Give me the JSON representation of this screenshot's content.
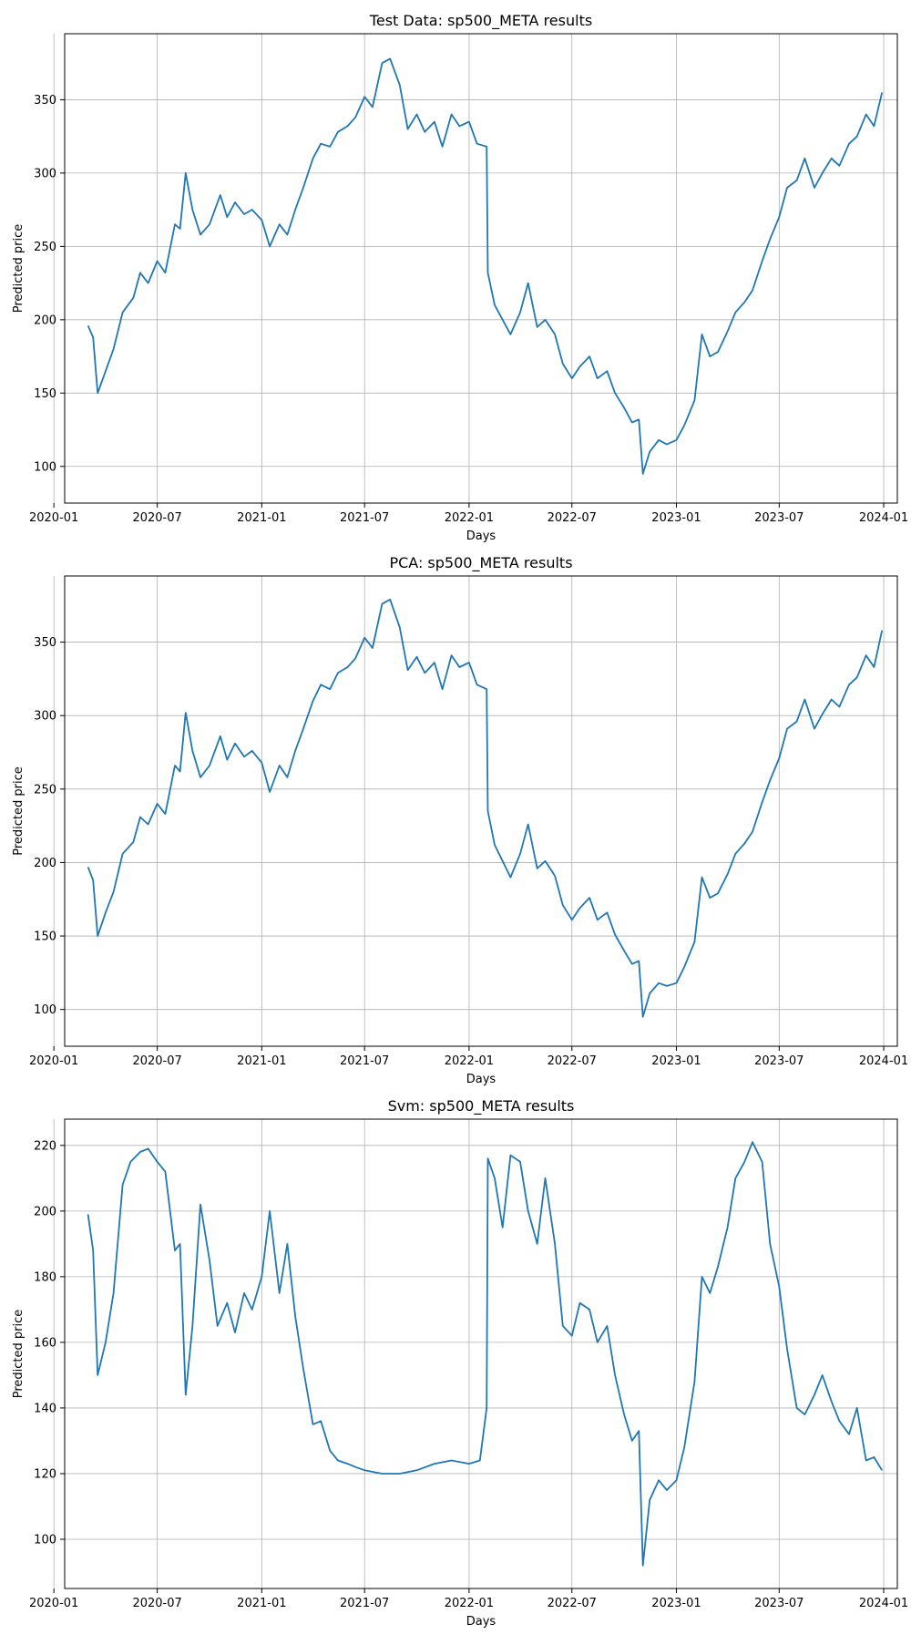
{
  "chart_data": [
    {
      "type": "line",
      "title": "Test Data: sp500_META results",
      "xlabel": "Days",
      "ylabel": "Predicted price",
      "x_ticks": [
        "2020-01",
        "2020-07",
        "2021-01",
        "2021-07",
        "2022-01",
        "2022-07",
        "2023-01",
        "2023-07",
        "2024-01"
      ],
      "y_ticks": [
        100,
        150,
        200,
        250,
        300,
        350
      ],
      "xlim": [
        "2020-01-20",
        "2024-01-25"
      ],
      "ylim": [
        75,
        395
      ],
      "grid": true,
      "color": "#1f77b4",
      "series": [
        {
          "x": [
            "2020-03-01",
            "2020-03-10",
            "2020-03-18",
            "2020-04-01",
            "2020-04-15",
            "2020-05-01",
            "2020-05-20",
            "2020-06-01",
            "2020-06-15",
            "2020-07-01",
            "2020-07-15",
            "2020-08-01",
            "2020-08-10",
            "2020-08-20",
            "2020-09-01",
            "2020-09-15",
            "2020-10-01",
            "2020-10-20",
            "2020-11-01",
            "2020-11-15",
            "2020-12-01",
            "2020-12-15",
            "2021-01-01",
            "2021-01-15",
            "2021-02-01",
            "2021-02-15",
            "2021-03-01",
            "2021-03-15",
            "2021-04-01",
            "2021-04-15",
            "2021-05-01",
            "2021-05-15",
            "2021-06-01",
            "2021-06-15",
            "2021-07-01",
            "2021-07-15",
            "2021-08-01",
            "2021-08-15",
            "2021-09-01",
            "2021-09-15",
            "2021-10-01",
            "2021-10-15",
            "2021-11-01",
            "2021-11-15",
            "2021-12-01",
            "2021-12-15",
            "2022-01-01",
            "2022-01-15",
            "2022-02-01",
            "2022-02-03",
            "2022-02-15",
            "2022-03-01",
            "2022-03-15",
            "2022-04-01",
            "2022-04-15",
            "2022-05-01",
            "2022-05-15",
            "2022-06-01",
            "2022-06-15",
            "2022-07-01",
            "2022-07-15",
            "2022-08-01",
            "2022-08-15",
            "2022-09-01",
            "2022-09-15",
            "2022-10-01",
            "2022-10-15",
            "2022-10-27",
            "2022-11-03",
            "2022-11-15",
            "2022-12-01",
            "2022-12-15",
            "2023-01-01",
            "2023-01-15",
            "2023-02-02",
            "2023-02-15",
            "2023-03-01",
            "2023-03-15",
            "2023-04-01",
            "2023-04-15",
            "2023-05-01",
            "2023-05-15",
            "2023-06-01",
            "2023-06-15",
            "2023-07-01",
            "2023-07-15",
            "2023-08-01",
            "2023-08-15",
            "2023-09-01",
            "2023-09-15",
            "2023-10-01",
            "2023-10-15",
            "2023-11-01",
            "2023-11-15",
            "2023-12-01",
            "2023-12-15",
            "2023-12-29"
          ],
          "values": [
            196,
            188,
            150,
            165,
            180,
            205,
            215,
            232,
            225,
            240,
            232,
            265,
            262,
            300,
            275,
            258,
            265,
            285,
            270,
            280,
            272,
            275,
            268,
            250,
            265,
            258,
            275,
            290,
            310,
            320,
            318,
            328,
            332,
            338,
            352,
            345,
            375,
            378,
            360,
            330,
            340,
            328,
            335,
            318,
            340,
            332,
            335,
            320,
            318,
            232,
            210,
            200,
            190,
            205,
            225,
            195,
            200,
            190,
            170,
            160,
            168,
            175,
            160,
            165,
            150,
            140,
            130,
            132,
            95,
            110,
            118,
            115,
            118,
            128,
            145,
            190,
            175,
            178,
            192,
            205,
            212,
            220,
            240,
            255,
            270,
            290,
            295,
            310,
            290,
            300,
            310,
            305,
            320,
            325,
            340,
            332,
            355
          ]
        }
      ]
    },
    {
      "type": "line",
      "title": "PCA: sp500_META results",
      "xlabel": "Days",
      "ylabel": "Predicted price",
      "x_ticks": [
        "2020-01",
        "2020-07",
        "2021-01",
        "2021-07",
        "2022-01",
        "2022-07",
        "2023-01",
        "2023-07",
        "2024-01"
      ],
      "y_ticks": [
        100,
        150,
        200,
        250,
        300,
        350
      ],
      "xlim": [
        "2020-01-20",
        "2024-01-25"
      ],
      "ylim": [
        75,
        395
      ],
      "grid": true,
      "color": "#1f77b4",
      "series": [
        {
          "x": [
            "2020-03-01",
            "2020-03-10",
            "2020-03-18",
            "2020-04-01",
            "2020-04-15",
            "2020-05-01",
            "2020-05-20",
            "2020-06-01",
            "2020-06-15",
            "2020-07-01",
            "2020-07-15",
            "2020-08-01",
            "2020-08-10",
            "2020-08-20",
            "2020-09-01",
            "2020-09-15",
            "2020-10-01",
            "2020-10-20",
            "2020-11-01",
            "2020-11-15",
            "2020-12-01",
            "2020-12-15",
            "2021-01-01",
            "2021-01-15",
            "2021-02-01",
            "2021-02-15",
            "2021-03-01",
            "2021-03-15",
            "2021-04-01",
            "2021-04-15",
            "2021-05-01",
            "2021-05-15",
            "2021-06-01",
            "2021-06-15",
            "2021-07-01",
            "2021-07-15",
            "2021-08-01",
            "2021-08-15",
            "2021-09-01",
            "2021-09-15",
            "2021-10-01",
            "2021-10-15",
            "2021-11-01",
            "2021-11-15",
            "2021-12-01",
            "2021-12-15",
            "2022-01-01",
            "2022-01-15",
            "2022-02-01",
            "2022-02-03",
            "2022-02-15",
            "2022-03-01",
            "2022-03-15",
            "2022-04-01",
            "2022-04-15",
            "2022-05-01",
            "2022-05-15",
            "2022-06-01",
            "2022-06-15",
            "2022-07-01",
            "2022-07-15",
            "2022-08-01",
            "2022-08-15",
            "2022-09-01",
            "2022-09-15",
            "2022-10-01",
            "2022-10-15",
            "2022-10-27",
            "2022-11-03",
            "2022-11-15",
            "2022-12-01",
            "2022-12-15",
            "2023-01-01",
            "2023-01-15",
            "2023-02-02",
            "2023-02-15",
            "2023-03-01",
            "2023-03-15",
            "2023-04-01",
            "2023-04-15",
            "2023-05-01",
            "2023-05-15",
            "2023-06-01",
            "2023-06-15",
            "2023-07-01",
            "2023-07-15",
            "2023-08-01",
            "2023-08-15",
            "2023-09-01",
            "2023-09-15",
            "2023-10-01",
            "2023-10-15",
            "2023-11-01",
            "2023-11-15",
            "2023-12-01",
            "2023-12-15",
            "2023-12-29"
          ],
          "values": [
            197,
            188,
            150,
            166,
            180,
            206,
            214,
            231,
            226,
            240,
            233,
            266,
            262,
            302,
            276,
            258,
            266,
            286,
            270,
            281,
            272,
            276,
            268,
            248,
            266,
            258,
            276,
            291,
            310,
            321,
            318,
            329,
            333,
            339,
            353,
            346,
            376,
            379,
            360,
            331,
            340,
            329,
            336,
            318,
            341,
            333,
            336,
            321,
            318,
            235,
            212,
            201,
            190,
            206,
            226,
            196,
            201,
            191,
            171,
            161,
            169,
            176,
            161,
            166,
            151,
            140,
            131,
            133,
            95,
            111,
            118,
            116,
            118,
            129,
            146,
            190,
            176,
            179,
            192,
            206,
            213,
            221,
            241,
            256,
            271,
            291,
            296,
            311,
            291,
            301,
            311,
            306,
            321,
            326,
            341,
            333,
            358
          ]
        }
      ]
    },
    {
      "type": "line",
      "title": "Svm: sp500_META results",
      "xlabel": "Days",
      "ylabel": "Predicted price",
      "x_ticks": [
        "2020-01",
        "2020-07",
        "2021-01",
        "2021-07",
        "2022-01",
        "2022-07",
        "2023-01",
        "2023-07",
        "2024-01"
      ],
      "y_ticks": [
        100,
        120,
        140,
        160,
        180,
        200,
        220
      ],
      "xlim": [
        "2020-01-20",
        "2024-01-25"
      ],
      "ylim": [
        85,
        228
      ],
      "grid": true,
      "color": "#1f77b4",
      "series": [
        {
          "x": [
            "2020-03-01",
            "2020-03-10",
            "2020-03-18",
            "2020-04-01",
            "2020-04-15",
            "2020-05-01",
            "2020-05-15",
            "2020-06-01",
            "2020-06-15",
            "2020-07-01",
            "2020-07-15",
            "2020-08-01",
            "2020-08-10",
            "2020-08-20",
            "2020-09-01",
            "2020-09-15",
            "2020-10-01",
            "2020-10-15",
            "2020-11-01",
            "2020-11-15",
            "2020-12-01",
            "2020-12-15",
            "2021-01-01",
            "2021-01-15",
            "2021-02-01",
            "2021-02-15",
            "2021-03-01",
            "2021-03-15",
            "2021-04-01",
            "2021-04-15",
            "2021-05-01",
            "2021-05-15",
            "2021-06-01",
            "2021-06-15",
            "2021-07-01",
            "2021-08-01",
            "2021-09-01",
            "2021-10-01",
            "2021-11-01",
            "2021-12-01",
            "2022-01-01",
            "2022-01-20",
            "2022-02-01",
            "2022-02-03",
            "2022-02-15",
            "2022-03-01",
            "2022-03-15",
            "2022-04-01",
            "2022-04-15",
            "2022-05-01",
            "2022-05-15",
            "2022-06-01",
            "2022-06-15",
            "2022-07-01",
            "2022-07-15",
            "2022-08-01",
            "2022-08-15",
            "2022-09-01",
            "2022-09-15",
            "2022-10-01",
            "2022-10-15",
            "2022-10-27",
            "2022-11-03",
            "2022-11-15",
            "2022-12-01",
            "2022-12-15",
            "2023-01-01",
            "2023-01-15",
            "2023-02-02",
            "2023-02-15",
            "2023-03-01",
            "2023-03-15",
            "2023-04-01",
            "2023-04-15",
            "2023-05-01",
            "2023-05-15",
            "2023-06-01",
            "2023-06-15",
            "2023-07-01",
            "2023-07-15",
            "2023-08-01",
            "2023-08-15",
            "2023-09-01",
            "2023-09-15",
            "2023-10-01",
            "2023-10-15",
            "2023-11-01",
            "2023-11-15",
            "2023-12-01",
            "2023-12-15",
            "2023-12-29"
          ],
          "values": [
            199,
            188,
            150,
            160,
            175,
            208,
            215,
            218,
            219,
            215,
            212,
            188,
            190,
            144,
            165,
            202,
            185,
            165,
            172,
            163,
            175,
            170,
            180,
            200,
            175,
            190,
            168,
            152,
            135,
            136,
            127,
            124,
            123,
            122,
            121,
            120,
            120,
            121,
            123,
            124,
            123,
            124,
            140,
            216,
            210,
            195,
            217,
            215,
            200,
            190,
            210,
            190,
            165,
            162,
            172,
            170,
            160,
            165,
            150,
            138,
            130,
            133,
            92,
            112,
            118,
            115,
            118,
            128,
            148,
            180,
            175,
            183,
            195,
            210,
            215,
            221,
            215,
            190,
            177,
            158,
            140,
            138,
            144,
            150,
            142,
            136,
            132,
            140,
            124,
            125,
            121
          ]
        }
      ]
    }
  ]
}
